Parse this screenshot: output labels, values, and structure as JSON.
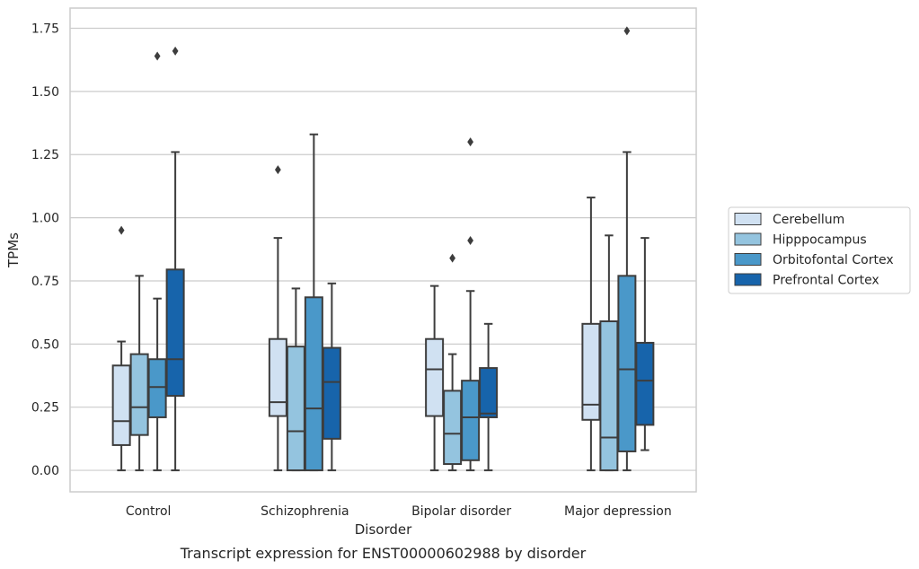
{
  "chart_data": {
    "type": "box",
    "xlabel": "Disorder",
    "ylabel": "TPMs",
    "caption": "Transcript expression for ENST00000602988 by disorder",
    "ylim": [
      -0.085,
      1.83
    ],
    "yticks": [
      0.0,
      0.25,
      0.5,
      0.75,
      1.0,
      1.25,
      1.5,
      1.75
    ],
    "ytick_labels": [
      "0.00",
      "0.25",
      "0.50",
      "0.75",
      "1.00",
      "1.25",
      "1.50",
      "1.75"
    ],
    "grid": "horizontal",
    "legend_position": "right",
    "categories": [
      "Control",
      "Schizophrenia",
      "Bipolar disorder",
      "Major depression"
    ],
    "series": [
      {
        "name": "Cerebellum",
        "color": "#d0e1f2",
        "boxes": [
          {
            "whislo": 0.0,
            "q1": 0.1,
            "med": 0.195,
            "q3": 0.415,
            "whishi": 0.51,
            "fliers": [
              0.95
            ]
          },
          {
            "whislo": 0.0,
            "q1": 0.215,
            "med": 0.27,
            "q3": 0.52,
            "whishi": 0.92,
            "fliers": [
              1.19
            ]
          },
          {
            "whislo": 0.0,
            "q1": 0.215,
            "med": 0.4,
            "q3": 0.52,
            "whishi": 0.73,
            "fliers": []
          },
          {
            "whislo": 0.0,
            "q1": 0.2,
            "med": 0.26,
            "q3": 0.58,
            "whishi": 1.08,
            "fliers": []
          }
        ]
      },
      {
        "name": "Hipppocampus",
        "color": "#94c4df",
        "boxes": [
          {
            "whislo": 0.0,
            "q1": 0.14,
            "med": 0.25,
            "q3": 0.46,
            "whishi": 0.77,
            "fliers": []
          },
          {
            "whislo": 0.0,
            "q1": 0.0,
            "med": 0.155,
            "q3": 0.49,
            "whishi": 0.72,
            "fliers": []
          },
          {
            "whislo": 0.0,
            "q1": 0.025,
            "med": 0.145,
            "q3": 0.315,
            "whishi": 0.46,
            "fliers": [
              0.84
            ]
          },
          {
            "whislo": 0.0,
            "q1": 0.0,
            "med": 0.13,
            "q3": 0.59,
            "whishi": 0.93,
            "fliers": []
          }
        ]
      },
      {
        "name": "Orbitofontal Cortex",
        "color": "#4a98c9",
        "boxes": [
          {
            "whislo": 0.0,
            "q1": 0.21,
            "med": 0.33,
            "q3": 0.44,
            "whishi": 0.68,
            "fliers": [
              1.64
            ]
          },
          {
            "whislo": 0.0,
            "q1": 0.0,
            "med": 0.245,
            "q3": 0.685,
            "whishi": 1.33,
            "fliers": []
          },
          {
            "whislo": 0.0,
            "q1": 0.04,
            "med": 0.21,
            "q3": 0.355,
            "whishi": 0.71,
            "fliers": [
              0.91,
              1.3
            ]
          },
          {
            "whislo": 0.0,
            "q1": 0.075,
            "med": 0.4,
            "q3": 0.77,
            "whishi": 1.26,
            "fliers": [
              1.74
            ]
          }
        ]
      },
      {
        "name": "Prefrontal Cortex",
        "color": "#1764ab",
        "boxes": [
          {
            "whislo": 0.0,
            "q1": 0.295,
            "med": 0.44,
            "q3": 0.795,
            "whishi": 1.26,
            "fliers": [
              1.66
            ]
          },
          {
            "whislo": 0.0,
            "q1": 0.125,
            "med": 0.35,
            "q3": 0.485,
            "whishi": 0.74,
            "fliers": []
          },
          {
            "whislo": 0.0,
            "q1": 0.21,
            "med": 0.225,
            "q3": 0.405,
            "whishi": 0.58,
            "fliers": []
          },
          {
            "whislo": 0.08,
            "q1": 0.18,
            "med": 0.355,
            "q3": 0.505,
            "whishi": 0.92,
            "fliers": []
          }
        ]
      }
    ]
  }
}
